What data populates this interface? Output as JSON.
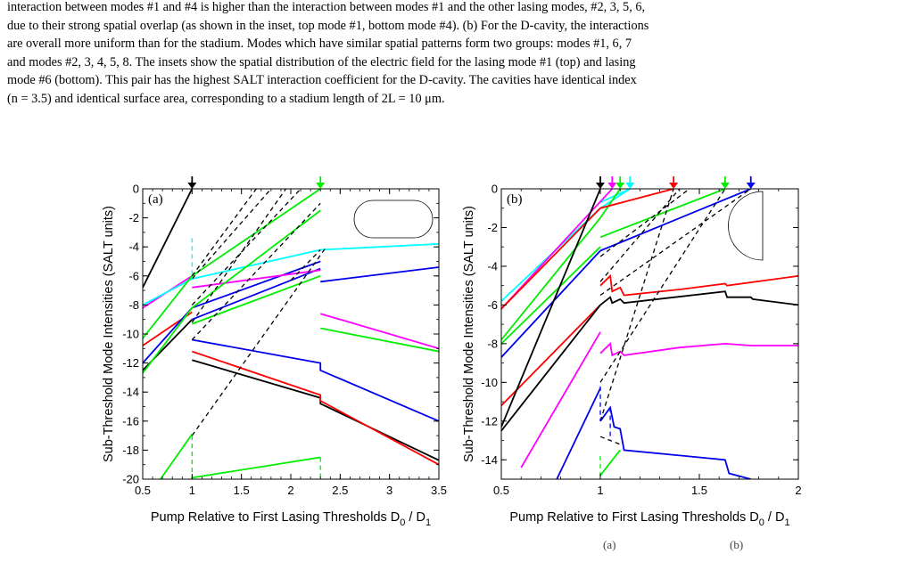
{
  "caption": {
    "lines": [
      "interaction between modes #1 and #4 is higher than the interaction between modes #1 and the other lasing modes, #2, 3, 5, 6,",
      "due to their strong spatial overlap (as shown in the inset, top mode #1, bottom mode #4). (b) For the D-cavity, the interactions",
      "are overall more uniform than for the stadium. Modes which have similar spatial patterns form two groups: modes #1, 6, 7",
      "and modes #2, 3, 4, 5, 8. The insets show the spatial distribution of the electric field for the lasing mode #1 (top) and lasing",
      "mode #6 (bottom). This pair has the highest SALT interaction coefficient for the D-cavity. The cavities have identical index",
      "(n = 3.5) and identical surface area, corresponding to a stadium length of 2L = 10 μm."
    ]
  },
  "footer": {
    "left_fragment": "(a)",
    "right_fragment": "(b)"
  },
  "colors": {
    "black": "#000000",
    "red": "#ff0000",
    "green": "#00ee00",
    "blue": "#0000ee",
    "magenta": "#ff00ff",
    "cyan": "#00ffff"
  },
  "chart_data": [
    {
      "type": "line",
      "panel_label": "(a)",
      "inset_shape": "stadium",
      "xlabel": "Pump Relative to First Lasing Thresholds D",
      "xlabel_sub0": "0",
      "xlabel_mid": " / D",
      "xlabel_sub1": "1",
      "ylabel": "Sub-Threshold Mode Intensities (SALT units)",
      "xlim": [
        0.5,
        3.5
      ],
      "ylim": [
        -20,
        0
      ],
      "xticks": [
        0.5,
        1,
        1.5,
        2,
        2.5,
        3,
        3.5
      ],
      "xtick_labels": [
        "0.5",
        "1",
        "1.5",
        "2",
        "2.5",
        "3",
        "3.5"
      ],
      "yticks": [
        0,
        -2,
        -4,
        -6,
        -8,
        -10,
        -12,
        -14,
        -16,
        -18,
        -20
      ],
      "ytick_labels": [
        "0",
        "-2",
        "-4",
        "-6",
        "-8",
        "-10",
        "-12",
        "-14",
        "-16",
        "-18",
        "-20"
      ],
      "threshold_arrows": [
        {
          "x": 1.0,
          "color": "black"
        },
        {
          "x": 2.3,
          "color": "green"
        }
      ],
      "series": [
        {
          "color": "black",
          "segments": [
            [
              [
                0.5,
                -6.8
              ],
              [
                1.0,
                0
              ]
            ],
            [
              [
                0.5,
                -12.5
              ],
              [
                1.0,
                -9.0
              ]
            ],
            [
              [
                1.0,
                -11.8
              ],
              [
                2.3,
                -14.4
              ],
              [
                2.3,
                -14.8
              ],
              [
                3.5,
                -18.7
              ]
            ]
          ]
        },
        {
          "color": "red",
          "segments": [
            [
              [
                0.5,
                -10.8
              ],
              [
                1.0,
                -8.5
              ]
            ],
            [
              [
                1.0,
                -11.2
              ],
              [
                2.3,
                -14.2
              ],
              [
                2.3,
                -14.6
              ],
              [
                3.5,
                -19.0
              ]
            ]
          ]
        },
        {
          "color": "blue",
          "segments": [
            [
              [
                0.5,
                -12.0
              ],
              [
                1.0,
                -8.2
              ],
              [
                2.3,
                -5.0
              ]
            ],
            [
              [
                1.0,
                -9.0
              ],
              [
                2.3,
                -5.5
              ]
            ],
            [
              [
                1.0,
                -10.4
              ],
              [
                2.3,
                -12.0
              ],
              [
                2.3,
                -12.5
              ],
              [
                3.5,
                -16.0
              ]
            ],
            [
              [
                2.3,
                -6.4
              ],
              [
                3.5,
                -5.4
              ]
            ]
          ]
        },
        {
          "color": "magenta",
          "segments": [
            [
              [
                0.5,
                -8.2
              ],
              [
                1.0,
                -6.0
              ]
            ],
            [
              [
                1.0,
                -6.8
              ],
              [
                2.3,
                -5.6
              ]
            ],
            [
              [
                2.3,
                -8.6
              ],
              [
                3.5,
                -11.0
              ]
            ]
          ]
        },
        {
          "color": "cyan",
          "segments": [
            [
              [
                0.5,
                -8.0
              ],
              [
                1.0,
                -6.2
              ]
            ],
            [
              [
                1.0,
                -6.2
              ],
              [
                2.3,
                -4.2
              ],
              [
                3.5,
                -3.8
              ]
            ]
          ]
        },
        {
          "color": "green",
          "segments": [
            [
              [
                0.5,
                -10.3
              ],
              [
                1.0,
                -6.0
              ],
              [
                2.3,
                0
              ]
            ],
            [
              [
                0.5,
                -12.7
              ],
              [
                1.0,
                -8.2
              ],
              [
                2.3,
                -1.5
              ]
            ],
            [
              [
                1.0,
                -9.3
              ],
              [
                2.3,
                -6.0
              ]
            ],
            [
              [
                2.3,
                -9.6
              ],
              [
                3.5,
                -11.2
              ]
            ],
            [
              [
                0.68,
                -20
              ],
              [
                1.0,
                -16.9
              ]
            ],
            [
              [
                1.0,
                -19.9
              ],
              [
                2.3,
                -18.5
              ]
            ]
          ]
        },
        {
          "color": "black",
          "dashed": true,
          "segments": [
            [
              [
                1.0,
                -17.0
              ],
              [
                2.35,
                -4.1
              ]
            ],
            [
              [
                1.0,
                -9.2
              ],
              [
                1.95,
                0
              ]
            ],
            [
              [
                1.0,
                -6.2
              ],
              [
                1.8,
                0
              ]
            ],
            [
              [
                1.0,
                -6.0
              ],
              [
                1.65,
                0
              ]
            ],
            [
              [
                1.0,
                -8.0
              ],
              [
                2.1,
                0
              ]
            ],
            [
              [
                1.0,
                -10.4
              ],
              [
                2.3,
                -1.0
              ]
            ],
            [
              [
                2.0,
                -6.3
              ],
              [
                2.3,
                -4.2
              ]
            ]
          ]
        },
        {
          "color": "cyan",
          "dashed": true,
          "segments": [
            [
              [
                1.0,
                -3.4
              ],
              [
                1.0,
                -6.2
              ]
            ]
          ]
        },
        {
          "color": "green",
          "dashed": true,
          "segments": [
            [
              [
                1.0,
                -17.0
              ],
              [
                1.0,
                -20
              ]
            ],
            [
              [
                2.3,
                -18.5
              ],
              [
                2.3,
                -20
              ]
            ]
          ]
        }
      ]
    },
    {
      "type": "line",
      "panel_label": "(b)",
      "inset_shape": "D-cavity",
      "xlabel": "Pump Relative to First Lasing Thresholds D",
      "xlabel_sub0": "0",
      "xlabel_mid": " / D",
      "xlabel_sub1": "1",
      "ylabel": "Sub-Threshold Mode Intensities (SALT units)",
      "xlim": [
        0.5,
        2.0
      ],
      "ylim": [
        -15,
        0
      ],
      "xticks": [
        0.5,
        1,
        1.5,
        2
      ],
      "xtick_labels": [
        "0.5",
        "1",
        "1.5",
        "2"
      ],
      "yticks": [
        0,
        -2,
        -4,
        -6,
        -8,
        -10,
        -12,
        -14
      ],
      "ytick_labels": [
        "0",
        "-2",
        "-4",
        "-6",
        "-8",
        "-10",
        "-12",
        "-14"
      ],
      "threshold_arrows": [
        {
          "x": 1.0,
          "color": "black"
        },
        {
          "x": 1.06,
          "color": "magenta"
        },
        {
          "x": 1.1,
          "color": "green"
        },
        {
          "x": 1.15,
          "color": "cyan"
        },
        {
          "x": 1.37,
          "color": "red"
        },
        {
          "x": 1.63,
          "color": "green"
        },
        {
          "x": 1.76,
          "color": "blue"
        }
      ],
      "series": [
        {
          "color": "cyan",
          "segments": [
            [
              [
                0.5,
                -5.8
              ],
              [
                1.0,
                -1.0
              ],
              [
                1.15,
                0
              ]
            ],
            [
              [
                1.0,
                -0.7
              ],
              [
                1.15,
                0
              ]
            ]
          ]
        },
        {
          "color": "magenta",
          "segments": [
            [
              [
                0.5,
                -6.2
              ],
              [
                1.06,
                0
              ]
            ],
            [
              [
                0.6,
                -14.4
              ],
              [
                1.0,
                -7.4
              ]
            ],
            [
              [
                1.0,
                -8.5
              ],
              [
                1.05,
                -8.0
              ],
              [
                1.06,
                -8.6
              ],
              [
                1.1,
                -8.4
              ],
              [
                1.12,
                -8.6
              ],
              [
                1.4,
                -8.2
              ],
              [
                1.63,
                -8.0
              ],
              [
                1.76,
                -8.1
              ],
              [
                2.0,
                -8.1
              ]
            ]
          ]
        },
        {
          "color": "green",
          "segments": [
            [
              [
                0.5,
                -7.8
              ],
              [
                1.0,
                -1.5
              ],
              [
                1.1,
                0
              ]
            ],
            [
              [
                0.5,
                -8.0
              ],
              [
                1.0,
                -3.0
              ]
            ],
            [
              [
                1.0,
                -2.5
              ],
              [
                1.63,
                0
              ]
            ],
            [
              [
                1.0,
                -14.8
              ],
              [
                1.1,
                -13.5
              ]
            ]
          ]
        },
        {
          "color": "red",
          "segments": [
            [
              [
                0.5,
                -11.2
              ],
              [
                1.0,
                -6.0
              ]
            ],
            [
              [
                0.5,
                -6.2
              ],
              [
                1.0,
                -1.0
              ],
              [
                1.37,
                0
              ]
            ],
            [
              [
                1.0,
                -5.0
              ],
              [
                1.05,
                -4.5
              ],
              [
                1.06,
                -5.3
              ],
              [
                1.1,
                -5.1
              ],
              [
                1.12,
                -5.5
              ],
              [
                1.4,
                -5.2
              ],
              [
                1.63,
                -4.9
              ],
              [
                1.64,
                -5.0
              ],
              [
                2.0,
                -4.5
              ]
            ]
          ]
        },
        {
          "color": "blue",
          "segments": [
            [
              [
                0.5,
                -8.7
              ],
              [
                1.0,
                -3.2
              ]
            ],
            [
              [
                1.0,
                -3.2
              ],
              [
                1.76,
                0
              ]
            ],
            [
              [
                0.78,
                -15
              ],
              [
                1.0,
                -10.3
              ]
            ],
            [
              [
                1.0,
                -12.0
              ],
              [
                1.05,
                -11.3
              ],
              [
                1.07,
                -12.3
              ],
              [
                1.1,
                -12.4
              ],
              [
                1.12,
                -13.5
              ],
              [
                1.63,
                -14.0
              ],
              [
                1.65,
                -14.7
              ],
              [
                1.76,
                -15.0
              ]
            ]
          ]
        },
        {
          "color": "black",
          "segments": [
            [
              [
                0.5,
                -12.3
              ],
              [
                1.0,
                0
              ]
            ],
            [
              [
                0.5,
                -12.5
              ],
              [
                1.0,
                -6.0
              ]
            ],
            [
              [
                1.0,
                -6.0
              ],
              [
                1.05,
                -5.6
              ],
              [
                1.06,
                -5.9
              ],
              [
                1.1,
                -5.7
              ],
              [
                1.12,
                -5.9
              ],
              [
                1.63,
                -5.3
              ],
              [
                1.64,
                -5.6
              ],
              [
                1.76,
                -5.6
              ],
              [
                1.77,
                -5.7
              ],
              [
                2.0,
                -6.0
              ]
            ]
          ]
        },
        {
          "color": "black",
          "dashed": true,
          "segments": [
            [
              [
                1.0,
                -12.0
              ],
              [
                1.37,
                0
              ]
            ],
            [
              [
                1.0,
                -10.0
              ],
              [
                1.63,
                0
              ]
            ],
            [
              [
                1.0,
                -5.5
              ],
              [
                1.76,
                0
              ]
            ],
            [
              [
                1.0,
                -4.8
              ],
              [
                1.4,
                0
              ]
            ],
            [
              [
                1.0,
                -3.5
              ],
              [
                1.45,
                0
              ]
            ],
            [
              [
                1.0,
                -12.8
              ],
              [
                1.1,
                -13.2
              ]
            ]
          ]
        },
        {
          "color": "blue",
          "dashed": true,
          "segments": [
            [
              [
                1.0,
                -10.2
              ],
              [
                1.0,
                -12.0
              ]
            ],
            [
              [
                1.05,
                -11.3
              ],
              [
                1.05,
                -13.0
              ]
            ]
          ]
        },
        {
          "color": "green",
          "dashed": true,
          "segments": [
            [
              [
                1.0,
                -13.8
              ],
              [
                1.0,
                -15.0
              ]
            ]
          ]
        }
      ]
    }
  ]
}
